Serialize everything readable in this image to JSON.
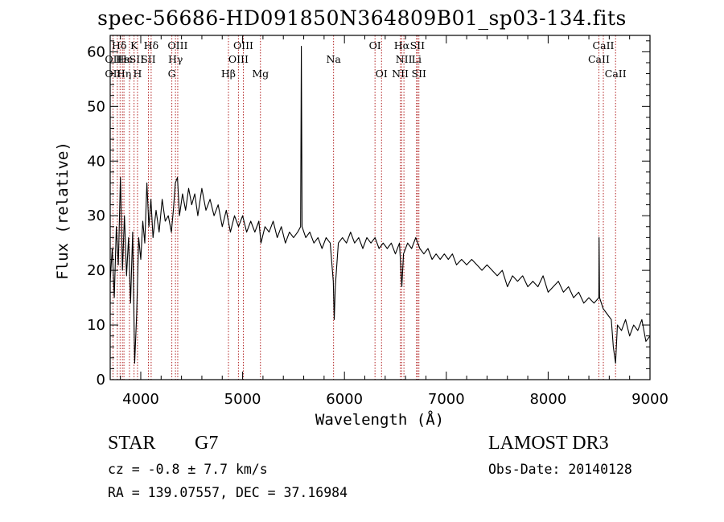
{
  "chart_data": {
    "type": "line",
    "title": "spec-56686-HD091850N364809B01_sp03-134.fits",
    "xlabel": "Wavelength (Å)",
    "ylabel": "Flux (relative)",
    "xlim": [
      3700,
      9000
    ],
    "ylim": [
      0,
      63
    ],
    "x_ticks": [
      4000,
      5000,
      6000,
      7000,
      8000,
      9000
    ],
    "y_ticks": [
      0,
      10,
      20,
      30,
      40,
      50,
      60
    ],
    "grid": false,
    "series_color": "#000000",
    "line_marker_color": "#b22222",
    "series": [
      {
        "points": [
          [
            3700,
            18
          ],
          [
            3720,
            24
          ],
          [
            3740,
            15
          ],
          [
            3760,
            28
          ],
          [
            3780,
            21
          ],
          [
            3800,
            37
          ],
          [
            3820,
            20
          ],
          [
            3840,
            30
          ],
          [
            3860,
            19
          ],
          [
            3880,
            26
          ],
          [
            3900,
            14
          ],
          [
            3920,
            27
          ],
          [
            3940,
            3
          ],
          [
            3960,
            12
          ],
          [
            3980,
            26
          ],
          [
            4000,
            22
          ],
          [
            4020,
            29
          ],
          [
            4040,
            25
          ],
          [
            4060,
            36
          ],
          [
            4080,
            28
          ],
          [
            4100,
            33
          ],
          [
            4120,
            26
          ],
          [
            4150,
            31
          ],
          [
            4180,
            27
          ],
          [
            4210,
            33
          ],
          [
            4240,
            29
          ],
          [
            4270,
            30
          ],
          [
            4300,
            27
          ],
          [
            4320,
            31
          ],
          [
            4340,
            36
          ],
          [
            4360,
            37
          ],
          [
            4380,
            30
          ],
          [
            4410,
            34
          ],
          [
            4440,
            31
          ],
          [
            4470,
            35
          ],
          [
            4500,
            32
          ],
          [
            4530,
            34
          ],
          [
            4560,
            30
          ],
          [
            4600,
            35
          ],
          [
            4640,
            31
          ],
          [
            4680,
            33
          ],
          [
            4720,
            30
          ],
          [
            4760,
            32
          ],
          [
            4800,
            28
          ],
          [
            4840,
            31
          ],
          [
            4880,
            27
          ],
          [
            4920,
            30
          ],
          [
            4960,
            28
          ],
          [
            5000,
            30
          ],
          [
            5040,
            27
          ],
          [
            5080,
            29
          ],
          [
            5120,
            27
          ],
          [
            5160,
            29
          ],
          [
            5180,
            25
          ],
          [
            5220,
            28
          ],
          [
            5260,
            27
          ],
          [
            5300,
            29
          ],
          [
            5340,
            26
          ],
          [
            5380,
            28
          ],
          [
            5420,
            25
          ],
          [
            5460,
            27
          ],
          [
            5500,
            26
          ],
          [
            5540,
            27
          ],
          [
            5570,
            28
          ],
          [
            5577,
            61
          ],
          [
            5584,
            28
          ],
          [
            5620,
            26
          ],
          [
            5660,
            27
          ],
          [
            5700,
            25
          ],
          [
            5740,
            26
          ],
          [
            5780,
            24
          ],
          [
            5820,
            26
          ],
          [
            5860,
            25
          ],
          [
            5890,
            18
          ],
          [
            5900,
            11
          ],
          [
            5910,
            17
          ],
          [
            5940,
            25
          ],
          [
            5980,
            26
          ],
          [
            6020,
            25
          ],
          [
            6060,
            27
          ],
          [
            6100,
            25
          ],
          [
            6140,
            26
          ],
          [
            6180,
            24
          ],
          [
            6220,
            26
          ],
          [
            6260,
            25
          ],
          [
            6300,
            26
          ],
          [
            6340,
            24
          ],
          [
            6380,
            25
          ],
          [
            6420,
            24
          ],
          [
            6460,
            25
          ],
          [
            6500,
            23
          ],
          [
            6540,
            25
          ],
          [
            6563,
            17
          ],
          [
            6580,
            23
          ],
          [
            6620,
            25
          ],
          [
            6660,
            24
          ],
          [
            6700,
            26
          ],
          [
            6740,
            24
          ],
          [
            6780,
            23
          ],
          [
            6820,
            24
          ],
          [
            6860,
            22
          ],
          [
            6900,
            23
          ],
          [
            6940,
            22
          ],
          [
            6980,
            23
          ],
          [
            7020,
            22
          ],
          [
            7060,
            23
          ],
          [
            7100,
            21
          ],
          [
            7150,
            22
          ],
          [
            7200,
            21
          ],
          [
            7250,
            22
          ],
          [
            7300,
            21
          ],
          [
            7350,
            20
          ],
          [
            7400,
            21
          ],
          [
            7450,
            20
          ],
          [
            7500,
            19
          ],
          [
            7550,
            20
          ],
          [
            7600,
            17
          ],
          [
            7650,
            19
          ],
          [
            7700,
            18
          ],
          [
            7750,
            19
          ],
          [
            7800,
            17
          ],
          [
            7850,
            18
          ],
          [
            7900,
            17
          ],
          [
            7950,
            19
          ],
          [
            8000,
            16
          ],
          [
            8050,
            17
          ],
          [
            8100,
            18
          ],
          [
            8150,
            16
          ],
          [
            8200,
            17
          ],
          [
            8250,
            15
          ],
          [
            8300,
            16
          ],
          [
            8350,
            14
          ],
          [
            8400,
            15
          ],
          [
            8450,
            14
          ],
          [
            8498,
            15
          ],
          [
            8500,
            26
          ],
          [
            8505,
            15
          ],
          [
            8540,
            13
          ],
          [
            8580,
            12
          ],
          [
            8620,
            11
          ],
          [
            8640,
            6
          ],
          [
            8662,
            3
          ],
          [
            8680,
            10
          ],
          [
            8720,
            9
          ],
          [
            8760,
            11
          ],
          [
            8800,
            8
          ],
          [
            8840,
            10
          ],
          [
            8880,
            9
          ],
          [
            8920,
            11
          ],
          [
            8960,
            7
          ],
          [
            9000,
            8
          ]
        ]
      }
    ],
    "line_labels": [
      {
        "text": "Hδ",
        "x": 3789,
        "row": 1
      },
      {
        "text": "OII",
        "x": 3727,
        "row": 2
      },
      {
        "text": "OII",
        "x": 3727,
        "row": 3
      },
      {
        "text": "Hε",
        "x": 3820,
        "row": 2
      },
      {
        "text": "He",
        "x": 3850,
        "row": 2
      },
      {
        "text": "Hη",
        "x": 3835,
        "row": 3
      },
      {
        "text": "K",
        "x": 3934,
        "row": 1
      },
      {
        "text": "SII",
        "x": 3960,
        "row": 2
      },
      {
        "text": "H",
        "x": 3968,
        "row": 3
      },
      {
        "text": "Hδ",
        "x": 4102,
        "row": 1
      },
      {
        "text": "SII",
        "x": 4075,
        "row": 2
      },
      {
        "text": "OIII",
        "x": 4363,
        "row": 1
      },
      {
        "text": "Hγ",
        "x": 4341,
        "row": 2
      },
      {
        "text": "G",
        "x": 4305,
        "row": 3
      },
      {
        "text": "Hβ",
        "x": 4861,
        "row": 3
      },
      {
        "text": "OIII",
        "x": 5007,
        "row": 1
      },
      {
        "text": "OIII",
        "x": 4959,
        "row": 2
      },
      {
        "text": "Mg",
        "x": 5175,
        "row": 3
      },
      {
        "text": "Na",
        "x": 5893,
        "row": 2
      },
      {
        "text": "OI",
        "x": 6300,
        "row": 1
      },
      {
        "text": "OI",
        "x": 6364,
        "row": 3
      },
      {
        "text": "Hα",
        "x": 6563,
        "row": 1
      },
      {
        "text": "SII",
        "x": 6716,
        "row": 1
      },
      {
        "text": "NII",
        "x": 6584,
        "row": 2
      },
      {
        "text": "Li",
        "x": 6708,
        "row": 2
      },
      {
        "text": "NII",
        "x": 6548,
        "row": 3
      },
      {
        "text": "SII",
        "x": 6731,
        "row": 3
      },
      {
        "text": "CaII",
        "x": 8542,
        "row": 1
      },
      {
        "text": "CaII",
        "x": 8498,
        "row": 2
      },
      {
        "text": "CaII",
        "x": 8662,
        "row": 3
      }
    ],
    "line_markers": [
      3727,
      3770,
      3797,
      3820,
      3835,
      3889,
      3934,
      3968,
      4075,
      4102,
      4305,
      4341,
      4363,
      4861,
      4959,
      5007,
      5175,
      5893,
      6300,
      6364,
      6548,
      6563,
      6584,
      6708,
      6716,
      6731,
      8498,
      8542,
      8662
    ]
  },
  "info": {
    "class_label": "STAR",
    "subclass": "G7",
    "redshift": "cz = -0.8 ± 7.7 km/s",
    "coords": "RA = 139.07557, DEC =  37.16984",
    "survey": "LAMOST DR3",
    "obs_date": "Obs-Date: 20140128"
  }
}
